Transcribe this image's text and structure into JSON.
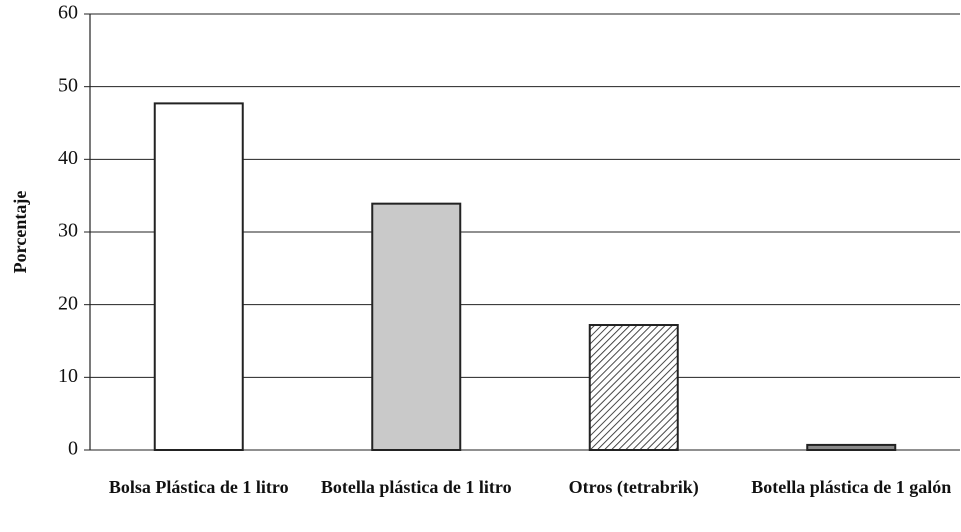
{
  "chart_data": {
    "type": "bar",
    "y_label": "Porcentaje",
    "categories": [
      "Bolsa Plástica de 1 litro",
      "Botella plástica de 1 litro",
      "Otros (tetrabrik)",
      "Botella plástica de 1 galón"
    ],
    "values": [
      47.7,
      33.9,
      17.2,
      0.7
    ],
    "colors": [
      "#ffffff",
      "#c9c9c9",
      "#ffffff",
      "#8a8a8a"
    ],
    "patterns": [
      "none",
      "none",
      "diagonal",
      "none"
    ],
    "ylim": [
      0,
      60
    ],
    "yticks": [
      0,
      10,
      20,
      30,
      40,
      50,
      60
    ],
    "grid": true
  }
}
